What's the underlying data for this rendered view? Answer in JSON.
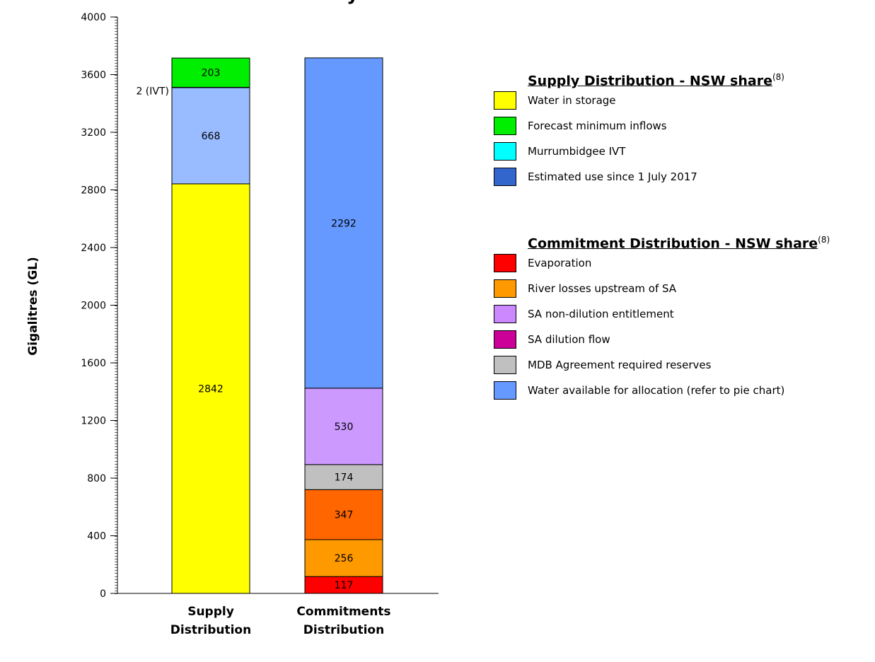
{
  "chart_data": {
    "type": "stacked-bar",
    "title": "y",
    "ylabel": "Gigalitres (GL)",
    "ylim": [
      0,
      4000
    ],
    "yticks": [
      0,
      400,
      800,
      1200,
      1600,
      2000,
      2400,
      2800,
      3200,
      3600,
      4000
    ],
    "grid": false,
    "categories": [
      "Supply Distribution",
      "Commitments Distribution"
    ],
    "stacks": [
      {
        "category": "Supply Distribution",
        "segments": [
          {
            "name": "Water in storage",
            "value": 2842,
            "color": "#ffff00",
            "label": "2842"
          },
          {
            "name": "Estimated use since 1 July 2017",
            "value": 668,
            "color": "#99bbff",
            "label": "668"
          },
          {
            "name": "Murrumbidgee IVT",
            "value": 2,
            "color": "#00ffff",
            "label": "2 (IVT)"
          },
          {
            "name": "Forecast minimum inflows",
            "value": 203,
            "color": "#00ee00",
            "label": "203"
          }
        ]
      },
      {
        "category": "Commitments Distribution",
        "segments": [
          {
            "name": "Evaporation",
            "value": 117,
            "color": "#ff0000",
            "label": "117"
          },
          {
            "name": "River losses upstream of SA",
            "value": 256,
            "color": "#ff9900",
            "label": "256"
          },
          {
            "name": "SA dilution flow",
            "value": 347,
            "color": "#ff6600",
            "label": "347"
          },
          {
            "name": "MDB Agreement required reserves",
            "value": 174,
            "color": "#c0c0c0",
            "label": "174"
          },
          {
            "name": "SA non-dilution entitlement",
            "value": 530,
            "color": "#cc99ff",
            "label": "530"
          },
          {
            "name": "Water available for allocation (refer to pie chart)",
            "value": 2292,
            "color": "#6699ff",
            "label": "2292"
          }
        ]
      }
    ]
  },
  "legend": {
    "supply": {
      "title": "Supply Distribution - NSW share",
      "note": "(8)",
      "items": [
        {
          "label": "Water in storage",
          "color": "#ffff00"
        },
        {
          "label": "Forecast minimum inflows",
          "color": "#00ee00"
        },
        {
          "label": "Murrumbidgee IVT",
          "color": "#00ffff"
        },
        {
          "label": "Estimated use since 1 July 2017",
          "color": "#3366cc"
        }
      ]
    },
    "commitment": {
      "title": "Commitment Distribution - NSW share",
      "note": "(8)",
      "items": [
        {
          "label": "Evaporation",
          "color": "#ff0000"
        },
        {
          "label": "River losses upstream of SA",
          "color": "#ff9900"
        },
        {
          "label": "SA non-dilution entitlement",
          "color": "#cc88ff"
        },
        {
          "label": "SA dilution flow",
          "color": "#cc0099"
        },
        {
          "label": "MDB Agreement required reserves",
          "color": "#c0c0c0"
        },
        {
          "label": "Water available for allocation (refer to pie chart)",
          "color": "#6699ff"
        }
      ]
    }
  }
}
